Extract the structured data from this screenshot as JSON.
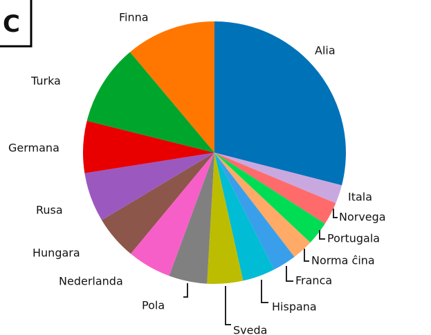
{
  "chart_data": {
    "type": "pie",
    "panel_label": "C",
    "categories": [
      "Alia",
      "Itala",
      "Norvega",
      "Portugala",
      "Norma ĉina",
      "Franca",
      "Hispana",
      "Sveda",
      "Pola",
      "Nederlanda",
      "Hungara",
      "Rusa",
      "Germana",
      "Turka",
      "Finna"
    ],
    "values": [
      29,
      2.3,
      2.8,
      2.9,
      2.6,
      2.9,
      4.0,
      4.4,
      4.7,
      5.4,
      5.4,
      6.1,
      6.4,
      10,
      11.1
    ],
    "colors": [
      "#0072b8",
      "#c9a8e0",
      "#ff6b6b",
      "#00dd55",
      "#ffaa66",
      "#3a9fea",
      "#00bcd4",
      "#bcbd00",
      "#808080",
      "#f75fc8",
      "#8c564b",
      "#9b59c0",
      "#e80000",
      "#00a52c",
      "#ff7700"
    ]
  }
}
